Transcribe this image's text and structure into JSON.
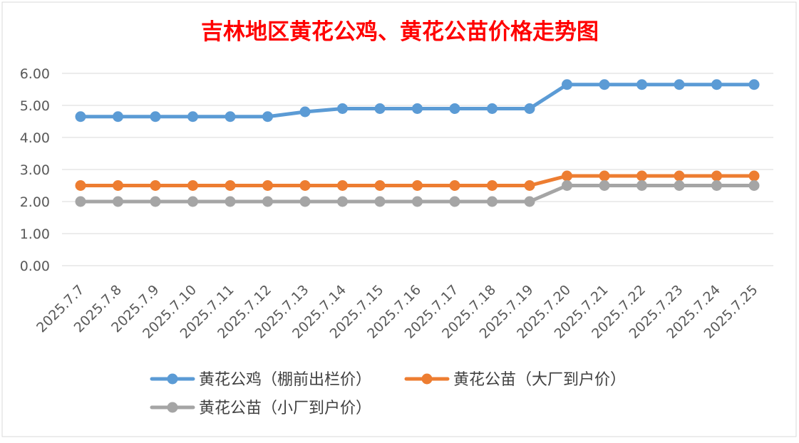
{
  "chart_data": {
    "type": "line",
    "title": "吉林地区黄花公鸡、黄花公苗价格走势图",
    "xlabel": "",
    "ylabel": "",
    "ylim": [
      0,
      6
    ],
    "yticks": [
      "0.00",
      "1.00",
      "2.00",
      "3.00",
      "4.00",
      "5.00",
      "6.00"
    ],
    "grid": true,
    "legend_position": "bottom",
    "categories": [
      "2025.7.7",
      "2025.7.8",
      "2025.7.9",
      "2025.7.10",
      "2025.7.11",
      "2025.7.12",
      "2025.7.13",
      "2025.7.14",
      "2025.7.15",
      "2025.7.16",
      "2025.7.17",
      "2025.7.18",
      "2025.7.19",
      "2025.7.20",
      "2025.7.21",
      "2025.7.22",
      "2025.7.23",
      "2025.7.24",
      "2025.7.25"
    ],
    "series": [
      {
        "name": "黄花公鸡（棚前出栏价）",
        "color": "#5B9BD5",
        "values": [
          4.65,
          4.65,
          4.65,
          4.65,
          4.65,
          4.65,
          4.8,
          4.9,
          4.9,
          4.9,
          4.9,
          4.9,
          4.9,
          5.65,
          5.65,
          5.65,
          5.65,
          5.65,
          5.65
        ]
      },
      {
        "name": "黄花公苗（大厂到户价）",
        "color": "#ED7D31",
        "values": [
          2.5,
          2.5,
          2.5,
          2.5,
          2.5,
          2.5,
          2.5,
          2.5,
          2.5,
          2.5,
          2.5,
          2.5,
          2.5,
          2.8,
          2.8,
          2.8,
          2.8,
          2.8,
          2.8
        ]
      },
      {
        "name": "黄花公苗（小厂到户价）",
        "color": "#A5A5A5",
        "values": [
          2.0,
          2.0,
          2.0,
          2.0,
          2.0,
          2.0,
          2.0,
          2.0,
          2.0,
          2.0,
          2.0,
          2.0,
          2.0,
          2.5,
          2.5,
          2.5,
          2.5,
          2.5,
          2.5
        ]
      }
    ],
    "title_color": "#FF0000"
  }
}
